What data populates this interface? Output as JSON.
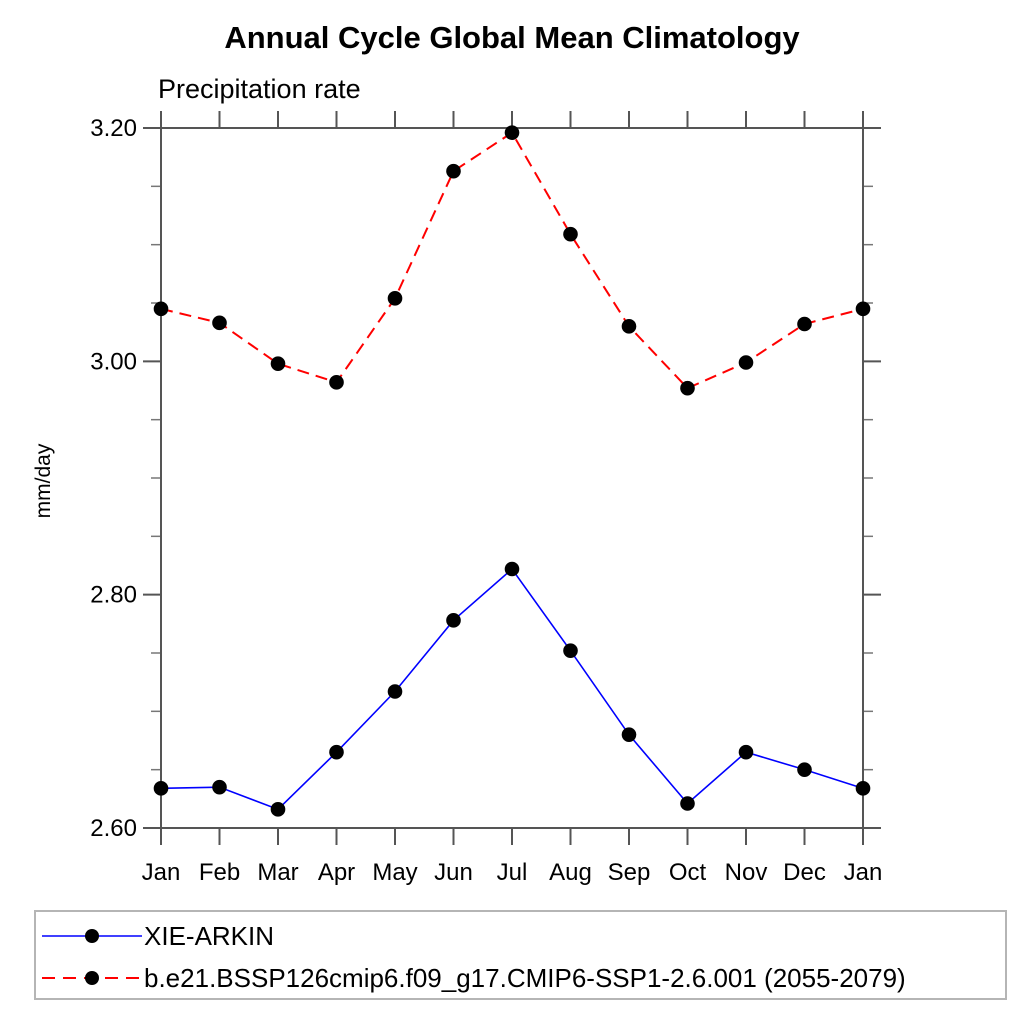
{
  "page": {
    "title": "Annual Cycle Global Mean Climatology",
    "subtitle": "Precipitation rate",
    "ylabel": "mm/day"
  },
  "colors": {
    "axis": "#555555",
    "minor_tick": "#777777",
    "text": "#000000",
    "marker": "#000000",
    "series_obs": "#0000ff",
    "series_model": "#ff0000",
    "legend_border": "#b5b5b5"
  },
  "chart_data": {
    "type": "line",
    "title": "Annual Cycle Global Mean Climatology",
    "subtitle": "Precipitation rate",
    "xlabel": "",
    "ylabel": "mm/day",
    "categories": [
      "Jan",
      "Feb",
      "Mar",
      "Apr",
      "May",
      "Jun",
      "Jul",
      "Aug",
      "Sep",
      "Oct",
      "Nov",
      "Dec",
      "Jan"
    ],
    "ylim": [
      2.6,
      3.2
    ],
    "yticks_major": [
      2.6,
      2.8,
      3.0,
      3.2
    ],
    "yticks_minor": [
      2.65,
      2.7,
      2.75,
      2.85,
      2.9,
      2.95,
      3.05,
      3.1,
      3.15
    ],
    "grid": false,
    "legend_position": "bottom",
    "series": [
      {
        "name": "XIE-ARKIN",
        "color": "#0000ff",
        "line_style": "solid",
        "marker": "filled-circle",
        "values": [
          2.634,
          2.635,
          2.616,
          2.665,
          2.717,
          2.778,
          2.822,
          2.752,
          2.68,
          2.621,
          2.665,
          2.65,
          2.634
        ]
      },
      {
        "name": "b.e21.BSSP126cmip6.f09_g17.CMIP6-SSP1-2.6.001 (2055-2079)",
        "color": "#ff0000",
        "line_style": "dashed",
        "marker": "filled-circle",
        "values": [
          3.045,
          3.033,
          2.998,
          2.982,
          3.054,
          3.163,
          3.196,
          3.109,
          3.03,
          2.977,
          2.999,
          3.032,
          3.045
        ]
      }
    ]
  },
  "legend": {
    "items": [
      {
        "label": "XIE-ARKIN"
      },
      {
        "label": "b.e21.BSSP126cmip6.f09_g17.CMIP6-SSP1-2.6.001 (2055-2079)"
      }
    ]
  }
}
